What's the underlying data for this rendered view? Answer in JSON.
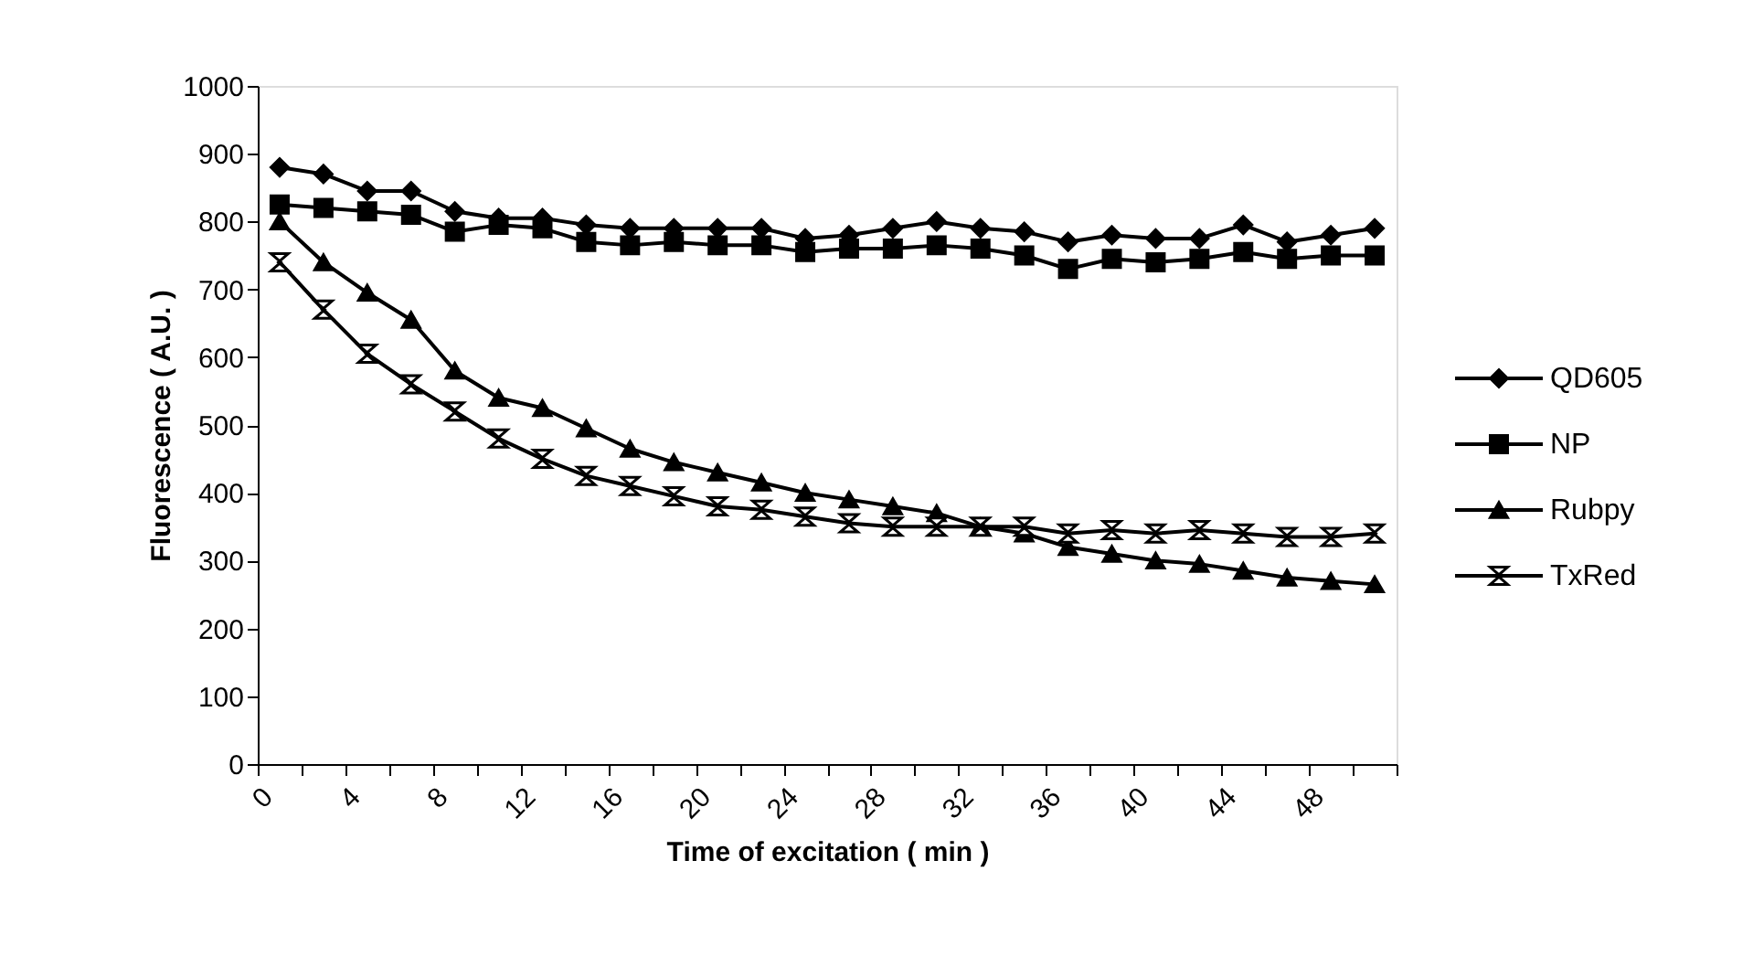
{
  "chart_data": {
    "type": "line",
    "xlabel": "Time of excitation ( min )",
    "ylabel": "Fluorescence ( A.U. )",
    "x": [
      1,
      3,
      5,
      7,
      9,
      11,
      13,
      15,
      17,
      19,
      21,
      23,
      25,
      27,
      29,
      31,
      33,
      35,
      37,
      39,
      41,
      43,
      45,
      47,
      49,
      51
    ],
    "series": [
      {
        "name": "QD605",
        "color": "#000000",
        "marker": "diamond",
        "values": [
          880,
          870,
          845,
          845,
          815,
          805,
          805,
          795,
          790,
          790,
          790,
          790,
          775,
          780,
          790,
          800,
          790,
          785,
          770,
          780,
          775,
          775,
          795,
          770,
          780,
          790
        ]
      },
      {
        "name": "NP",
        "color": "#000000",
        "marker": "square",
        "values": [
          825,
          820,
          815,
          810,
          785,
          795,
          790,
          770,
          765,
          770,
          765,
          765,
          755,
          760,
          760,
          765,
          760,
          750,
          730,
          745,
          740,
          745,
          755,
          745,
          750,
          750
        ]
      },
      {
        "name": "Rubpy",
        "color": "#000000",
        "marker": "triangle",
        "values": [
          800,
          740,
          695,
          655,
          580,
          540,
          525,
          495,
          465,
          445,
          430,
          415,
          400,
          390,
          380,
          370,
          350,
          340,
          320,
          310,
          300,
          295,
          285,
          275,
          270,
          265
        ]
      },
      {
        "name": "TxRed",
        "color": "#000000",
        "marker": "cross",
        "values": [
          740,
          670,
          605,
          560,
          520,
          480,
          450,
          425,
          410,
          395,
          380,
          375,
          365,
          355,
          350,
          350,
          350,
          350,
          340,
          345,
          340,
          345,
          340,
          335,
          335,
          340
        ]
      }
    ],
    "xlim": [
      0,
      52
    ],
    "xticks": [
      0,
      {
        "value": 2,
        "label": null
      },
      4,
      {
        "value": 6,
        "label": null
      },
      8,
      {
        "value": 10,
        "label": null
      },
      12,
      {
        "value": 14,
        "label": null
      },
      16,
      {
        "value": 18,
        "label": null
      },
      20,
      {
        "value": 22,
        "label": null
      },
      24,
      {
        "value": 26,
        "label": null
      },
      28,
      {
        "value": 30,
        "label": null
      },
      32,
      {
        "value": 34,
        "label": null
      },
      36,
      {
        "value": 38,
        "label": null
      },
      40,
      {
        "value": 42,
        "label": null
      },
      44,
      {
        "value": 46,
        "label": null
      },
      48,
      {
        "value": 50,
        "label": null
      },
      {
        "value": 52,
        "label": null
      }
    ],
    "ylim": [
      0,
      1000
    ],
    "yticks": [
      0,
      100,
      200,
      300,
      400,
      500,
      600,
      700,
      800,
      900,
      1000
    ],
    "grid": false,
    "legend": "right",
    "line_style": "solid"
  }
}
